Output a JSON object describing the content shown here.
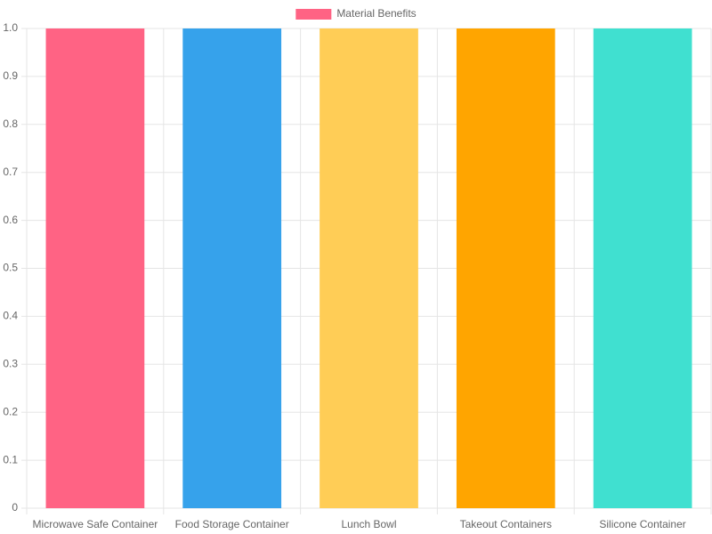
{
  "chart_data": {
    "type": "bar",
    "categories": [
      "Microwave Safe Container",
      "Food Storage Container",
      "Lunch Bowl",
      "Takeout Containers",
      "Silicone Container"
    ],
    "series": [
      {
        "name": "Material Benefits",
        "colors": [
          "#ff6384",
          "#36a2eb",
          "#ffcd56",
          "#ffa500",
          "#40e0d0"
        ],
        "values": [
          1,
          1,
          1,
          1,
          1
        ]
      }
    ],
    "ylim": [
      0,
      1
    ],
    "yticks": [
      0,
      0.1,
      0.2,
      0.3,
      0.4,
      0.5,
      0.6,
      0.7,
      0.8,
      0.9,
      {
        "value": 1,
        "label": "1.0"
      }
    ],
    "grid": true,
    "legend": "top"
  }
}
